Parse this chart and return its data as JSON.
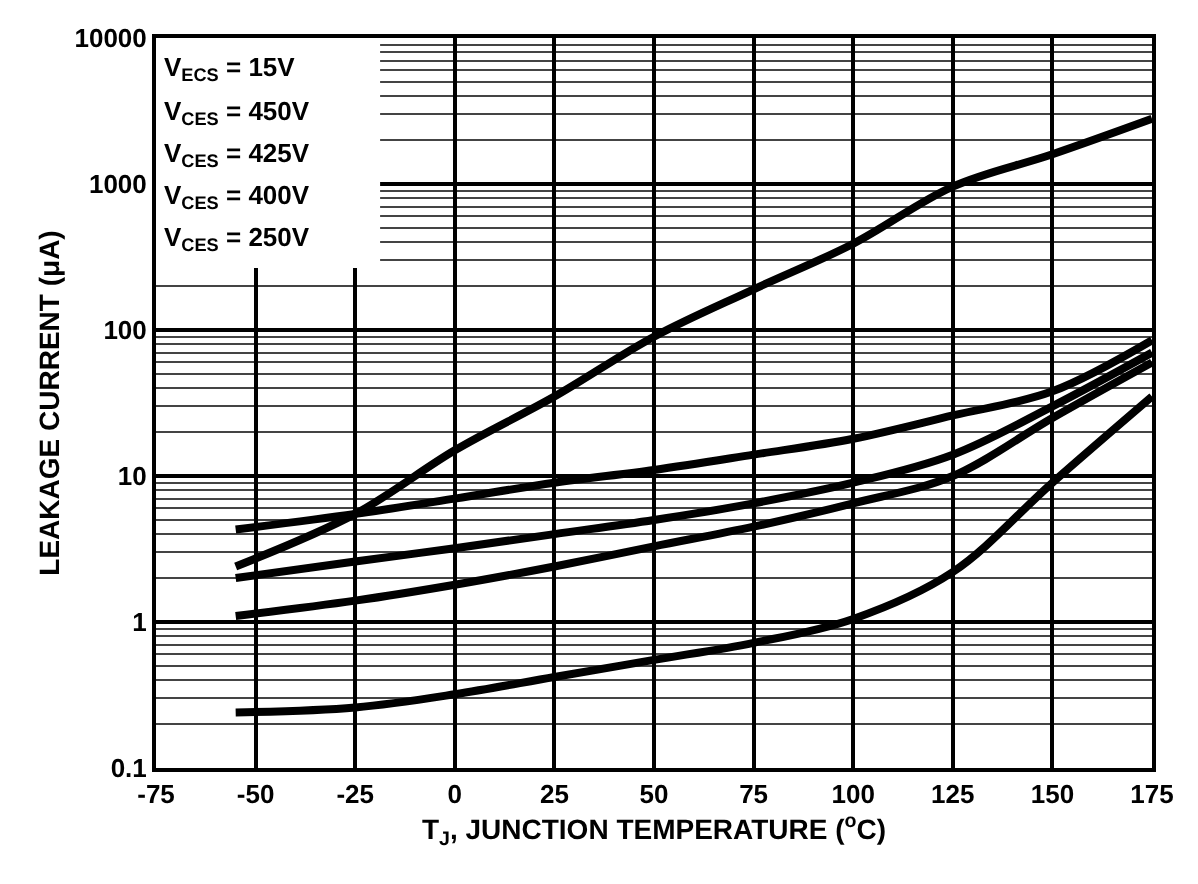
{
  "chart_data": {
    "type": "line",
    "xlabel": "T$_{J}$, JUNCTION TEMPERATURE ($^{o}$C)",
    "ylabel": "LEAKAGE CURRENT (μA)",
    "x": [
      -55,
      -25,
      0,
      25,
      50,
      75,
      100,
      125,
      150,
      175
    ],
    "series": [
      {
        "color": "#000000",
        "values": [
          2.4,
          5.5,
          15,
          35,
          90,
          190,
          390,
          960,
          1600,
          2800
        ]
      },
      {
        "color": "#000000",
        "values": [
          4.3,
          5.5,
          7,
          9,
          11,
          14,
          18,
          26,
          38,
          85
        ]
      },
      {
        "color": "#000000",
        "values": [
          2.0,
          2.6,
          3.2,
          4,
          5,
          6.5,
          9,
          14,
          30,
          70
        ]
      },
      {
        "color": "#000000",
        "values": [
          1.1,
          1.4,
          1.8,
          2.4,
          3.3,
          4.5,
          6.5,
          10,
          25,
          60
        ]
      },
      {
        "color": "#000000",
        "values": [
          0.24,
          0.26,
          0.32,
          0.42,
          0.55,
          0.72,
          1.05,
          2.2,
          9,
          35
        ]
      }
    ],
    "annotations": [
      "V$_{ECS}$ = 15V",
      "V$_{CES}$ = 450V",
      "V$_{CES}$ = 425V",
      "V$_{CES}$ = 400V",
      "V$_{CES}$ = 250V"
    ],
    "log": "y",
    "grid": true,
    "marker": "none",
    "line_style": "solid",
    "xlim": [
      -75,
      175
    ],
    "xticks": [
      -75,
      -50,
      -25,
      0,
      25,
      50,
      75,
      100,
      125,
      150,
      175
    ],
    "ylim": [
      0.1,
      10000
    ],
    "yticks": [
      0.1,
      1,
      10,
      100,
      1000,
      10000
    ]
  }
}
